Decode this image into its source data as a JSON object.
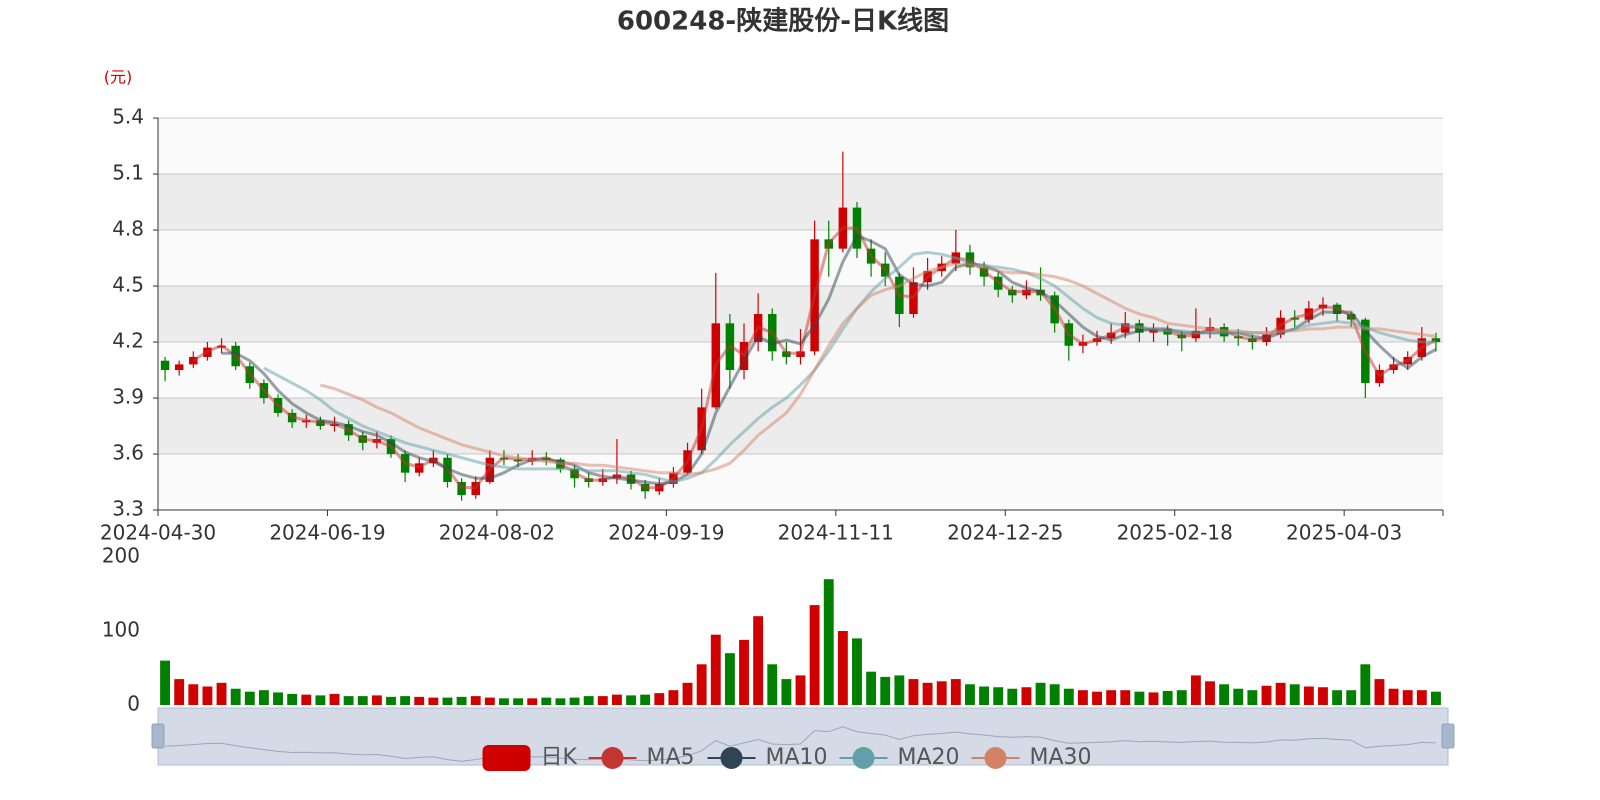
{
  "chart_data": [
    {
      "type": "candlestick",
      "title": "600248-陕建股份-日K线图",
      "y_label": "(元)",
      "name": "日K",
      "up_color": "#d10000",
      "down_color": "#008000",
      "grid": true,
      "legend": "bottom",
      "ylim": [
        3.3,
        5.4
      ],
      "yticks": [
        3.3,
        3.6,
        3.9,
        4.2,
        4.5,
        4.8,
        5.1,
        5.4
      ],
      "categories": [
        "2024-04-30",
        null,
        null,
        null,
        null,
        null,
        null,
        null,
        null,
        null,
        null,
        null,
        "2024-06-19",
        null,
        null,
        null,
        null,
        null,
        null,
        null,
        null,
        null,
        null,
        null,
        "2024-08-02",
        null,
        null,
        null,
        null,
        null,
        null,
        null,
        null,
        null,
        null,
        null,
        "2024-09-19",
        null,
        null,
        null,
        null,
        null,
        null,
        null,
        null,
        null,
        null,
        null,
        "2024-11-11",
        null,
        null,
        null,
        null,
        null,
        null,
        null,
        null,
        null,
        null,
        null,
        "2024-12-25",
        null,
        null,
        null,
        null,
        null,
        null,
        null,
        null,
        null,
        null,
        null,
        "2025-02-18",
        null,
        null,
        null,
        null,
        null,
        null,
        null,
        null,
        null,
        null,
        null,
        "2025-04-03",
        null,
        null,
        null,
        null,
        null,
        null
      ],
      "ohlc": [
        [
          4.1,
          4.05,
          3.99,
          4.12
        ],
        [
          4.05,
          4.08,
          4.02,
          4.1
        ],
        [
          4.08,
          4.12,
          4.06,
          4.15
        ],
        [
          4.12,
          4.17,
          4.1,
          4.2
        ],
        [
          4.17,
          4.18,
          4.14,
          4.22
        ],
        [
          4.18,
          4.07,
          4.05,
          4.2
        ],
        [
          4.07,
          3.98,
          3.95,
          4.09
        ],
        [
          3.98,
          3.9,
          3.87,
          4.0
        ],
        [
          3.9,
          3.82,
          3.8,
          3.92
        ],
        [
          3.82,
          3.77,
          3.74,
          3.84
        ],
        [
          3.77,
          3.78,
          3.74,
          3.81
        ],
        [
          3.78,
          3.75,
          3.73,
          3.8
        ],
        [
          3.75,
          3.76,
          3.72,
          3.8
        ],
        [
          3.76,
          3.7,
          3.67,
          3.78
        ],
        [
          3.7,
          3.66,
          3.62,
          3.72
        ],
        [
          3.66,
          3.68,
          3.63,
          3.72
        ],
        [
          3.68,
          3.6,
          3.58,
          3.7
        ],
        [
          3.6,
          3.5,
          3.45,
          3.62
        ],
        [
          3.5,
          3.55,
          3.48,
          3.58
        ],
        [
          3.55,
          3.58,
          3.53,
          3.62
        ],
        [
          3.58,
          3.45,
          3.42,
          3.6
        ],
        [
          3.45,
          3.38,
          3.35,
          3.47
        ],
        [
          3.38,
          3.45,
          3.36,
          3.48
        ],
        [
          3.45,
          3.58,
          3.44,
          3.62
        ],
        [
          3.58,
          3.57,
          3.54,
          3.62
        ],
        [
          3.57,
          3.56,
          3.53,
          3.6
        ],
        [
          3.56,
          3.58,
          3.54,
          3.62
        ],
        [
          3.58,
          3.57,
          3.54,
          3.61
        ],
        [
          3.57,
          3.52,
          3.5,
          3.58
        ],
        [
          3.52,
          3.47,
          3.42,
          3.54
        ],
        [
          3.47,
          3.45,
          3.42,
          3.5
        ],
        [
          3.45,
          3.47,
          3.43,
          3.52
        ],
        [
          3.47,
          3.49,
          3.44,
          3.68
        ],
        [
          3.49,
          3.44,
          3.41,
          3.51
        ],
        [
          3.44,
          3.4,
          3.36,
          3.46
        ],
        [
          3.4,
          3.44,
          3.38,
          3.47
        ],
        [
          3.44,
          3.5,
          3.42,
          3.53
        ],
        [
          3.5,
          3.62,
          3.49,
          3.66
        ],
        [
          3.62,
          3.85,
          3.6,
          3.95
        ],
        [
          3.85,
          4.3,
          3.84,
          4.57
        ],
        [
          4.3,
          4.05,
          3.95,
          4.35
        ],
        [
          4.05,
          4.2,
          4.0,
          4.3
        ],
        [
          4.2,
          4.35,
          4.15,
          4.46
        ],
        [
          4.35,
          4.15,
          4.1,
          4.38
        ],
        [
          4.15,
          4.12,
          4.08,
          4.2
        ],
        [
          4.12,
          4.15,
          4.08,
          4.27
        ],
        [
          4.15,
          4.75,
          4.13,
          4.85
        ],
        [
          4.75,
          4.7,
          4.55,
          4.85
        ],
        [
          4.7,
          4.92,
          4.68,
          5.22
        ],
        [
          4.92,
          4.7,
          4.65,
          4.95
        ],
        [
          4.7,
          4.62,
          4.55,
          4.75
        ],
        [
          4.62,
          4.55,
          4.5,
          4.68
        ],
        [
          4.55,
          4.35,
          4.28,
          4.57
        ],
        [
          4.35,
          4.52,
          4.33,
          4.6
        ],
        [
          4.52,
          4.58,
          4.48,
          4.65
        ],
        [
          4.58,
          4.62,
          4.55,
          4.66
        ],
        [
          4.62,
          4.68,
          4.58,
          4.8
        ],
        [
          4.68,
          4.6,
          4.56,
          4.72
        ],
        [
          4.6,
          4.55,
          4.5,
          4.63
        ],
        [
          4.55,
          4.48,
          4.44,
          4.58
        ],
        [
          4.48,
          4.45,
          4.41,
          4.5
        ],
        [
          4.45,
          4.48,
          4.43,
          4.53
        ],
        [
          4.48,
          4.45,
          4.42,
          4.6
        ],
        [
          4.45,
          4.3,
          4.25,
          4.47
        ],
        [
          4.3,
          4.18,
          4.1,
          4.32
        ],
        [
          4.18,
          4.2,
          4.14,
          4.24
        ],
        [
          4.2,
          4.22,
          4.18,
          4.26
        ],
        [
          4.22,
          4.25,
          4.19,
          4.3
        ],
        [
          4.25,
          4.3,
          4.22,
          4.36
        ],
        [
          4.3,
          4.25,
          4.2,
          4.32
        ],
        [
          4.25,
          4.27,
          4.2,
          4.3
        ],
        [
          4.27,
          4.24,
          4.18,
          4.29
        ],
        [
          4.24,
          4.22,
          4.15,
          4.26
        ],
        [
          4.22,
          4.26,
          4.2,
          4.38
        ],
        [
          4.26,
          4.28,
          4.22,
          4.33
        ],
        [
          4.28,
          4.23,
          4.2,
          4.3
        ],
        [
          4.23,
          4.22,
          4.18,
          4.27
        ],
        [
          4.22,
          4.2,
          4.16,
          4.24
        ],
        [
          4.2,
          4.24,
          4.18,
          4.28
        ],
        [
          4.24,
          4.33,
          4.22,
          4.37
        ],
        [
          4.33,
          4.32,
          4.28,
          4.37
        ],
        [
          4.32,
          4.38,
          4.3,
          4.42
        ],
        [
          4.38,
          4.4,
          4.34,
          4.44
        ],
        [
          4.4,
          4.35,
          4.31,
          4.41
        ],
        [
          4.35,
          4.32,
          4.28,
          4.36
        ],
        [
          4.32,
          3.98,
          3.9,
          4.33
        ],
        [
          3.98,
          4.05,
          3.96,
          4.08
        ],
        [
          4.05,
          4.08,
          4.03,
          4.12
        ],
        [
          4.08,
          4.12,
          4.05,
          4.15
        ],
        [
          4.12,
          4.22,
          4.1,
          4.28
        ],
        [
          4.22,
          4.2,
          4.15,
          4.25
        ]
      ],
      "series": [
        {
          "name": "MA5",
          "color": "#c23531",
          "values": [
            null,
            null,
            4.1,
            4.15,
            4.18,
            4.13,
            4.03,
            3.94,
            3.86,
            3.8,
            3.78,
            3.77,
            3.76,
            3.73,
            3.68,
            3.67,
            3.64,
            3.55,
            3.53,
            3.57,
            3.52,
            3.42,
            3.42,
            3.52,
            3.58,
            3.57,
            3.57,
            3.58,
            3.55,
            3.5,
            3.46,
            3.46,
            3.48,
            3.47,
            3.42,
            3.42,
            3.47,
            3.56,
            3.74,
            4.08,
            4.18,
            4.13,
            4.28,
            4.25,
            4.14,
            4.14,
            4.45,
            4.73,
            4.81,
            4.81,
            4.66,
            4.59,
            4.45,
            4.44,
            4.55,
            4.6,
            4.65,
            4.64,
            4.58,
            4.52,
            4.47,
            4.47,
            4.47,
            4.38,
            4.24,
            4.19,
            4.21,
            4.24,
            4.28,
            4.28,
            4.26,
            4.26,
            4.23,
            4.24,
            4.27,
            4.26,
            4.23,
            4.21,
            4.22,
            4.29,
            4.33,
            4.35,
            4.39,
            4.38,
            4.34,
            4.15,
            4.02,
            4.07,
            4.1,
            4.17,
            4.21
          ]
        },
        {
          "name": "MA10",
          "color": "#2f4554",
          "values": [
            null,
            null,
            null,
            null,
            4.14,
            4.14,
            4.1,
            4.03,
            3.94,
            3.87,
            3.82,
            3.78,
            3.77,
            3.75,
            3.72,
            3.7,
            3.66,
            3.61,
            3.58,
            3.56,
            3.52,
            3.49,
            3.47,
            3.47,
            3.5,
            3.54,
            3.57,
            3.57,
            3.56,
            3.54,
            3.5,
            3.48,
            3.47,
            3.46,
            3.45,
            3.44,
            3.45,
            3.49,
            3.6,
            3.82,
            3.96,
            4.1,
            4.23,
            4.19,
            4.21,
            4.19,
            4.29,
            4.43,
            4.63,
            4.77,
            4.74,
            4.7,
            4.56,
            4.51,
            4.5,
            4.52,
            4.6,
            4.62,
            4.61,
            4.58,
            4.52,
            4.49,
            4.47,
            4.42,
            4.35,
            4.28,
            4.23,
            4.21,
            4.24,
            4.26,
            4.27,
            4.27,
            4.25,
            4.25,
            4.25,
            4.25,
            4.25,
            4.23,
            4.22,
            4.25,
            4.27,
            4.32,
            4.36,
            4.36,
            4.36,
            4.26,
            4.18,
            4.11,
            4.06,
            4.12,
            4.16
          ]
        },
        {
          "name": "MA20",
          "color": "#61a0a8",
          "values": [
            null,
            null,
            null,
            null,
            null,
            null,
            null,
            4.06,
            4.02,
            3.98,
            3.94,
            3.89,
            3.83,
            3.79,
            3.75,
            3.72,
            3.69,
            3.66,
            3.64,
            3.62,
            3.6,
            3.58,
            3.56,
            3.54,
            3.53,
            3.52,
            3.52,
            3.52,
            3.52,
            3.52,
            3.51,
            3.51,
            3.51,
            3.5,
            3.49,
            3.47,
            3.45,
            3.47,
            3.5,
            3.57,
            3.65,
            3.72,
            3.79,
            3.85,
            3.9,
            3.97,
            4.05,
            4.15,
            4.27,
            4.38,
            4.47,
            4.54,
            4.6,
            4.67,
            4.68,
            4.67,
            4.65,
            4.62,
            4.61,
            4.6,
            4.59,
            4.57,
            4.54,
            4.5,
            4.44,
            4.38,
            4.33,
            4.3,
            4.29,
            4.28,
            4.27,
            4.26,
            4.26,
            4.25,
            4.25,
            4.25,
            4.25,
            4.25,
            4.25,
            4.25,
            4.27,
            4.29,
            4.3,
            4.31,
            4.3,
            4.28,
            4.25,
            4.23,
            4.21,
            4.2,
            4.2
          ]
        },
        {
          "name": "MA30",
          "color": "#d48265",
          "values": [
            null,
            null,
            null,
            null,
            null,
            null,
            null,
            null,
            null,
            null,
            null,
            3.97,
            3.95,
            3.92,
            3.89,
            3.85,
            3.82,
            3.78,
            3.74,
            3.71,
            3.68,
            3.65,
            3.63,
            3.61,
            3.59,
            3.58,
            3.57,
            3.56,
            3.55,
            3.55,
            3.54,
            3.54,
            3.53,
            3.52,
            3.51,
            3.5,
            3.5,
            3.49,
            3.5,
            3.52,
            3.55,
            3.62,
            3.7,
            3.76,
            3.82,
            3.92,
            4.05,
            4.18,
            4.3,
            4.38,
            4.45,
            4.48,
            4.5,
            4.54,
            4.58,
            4.6,
            4.62,
            4.61,
            4.6,
            4.58,
            4.57,
            4.57,
            4.56,
            4.55,
            4.53,
            4.5,
            4.46,
            4.42,
            4.38,
            4.35,
            4.33,
            4.3,
            4.29,
            4.28,
            4.27,
            4.26,
            4.26,
            4.25,
            4.25,
            4.26,
            4.26,
            4.27,
            4.27,
            4.28,
            4.28,
            4.27,
            4.27,
            4.26,
            4.25,
            4.24,
            4.23
          ]
        }
      ]
    },
    {
      "type": "bar",
      "ylim": [
        0,
        200
      ],
      "yticks": [
        0,
        100,
        200
      ],
      "values": [
        60,
        35,
        28,
        25,
        30,
        22,
        18,
        20,
        17,
        15,
        14,
        13,
        15,
        12,
        12,
        13,
        11,
        12,
        11,
        10,
        10,
        11,
        12,
        10,
        9,
        9,
        9,
        10,
        9,
        10,
        12,
        12,
        14,
        13,
        14,
        16,
        20,
        30,
        55,
        95,
        70,
        88,
        120,
        55,
        35,
        40,
        135,
        170,
        100,
        90,
        45,
        38,
        40,
        35,
        30,
        32,
        35,
        28,
        25,
        24,
        22,
        24,
        30,
        28,
        22,
        20,
        18,
        20,
        20,
        18,
        17,
        19,
        20,
        40,
        32,
        28,
        22,
        20,
        26,
        30,
        28,
        25,
        24,
        20,
        20,
        55,
        35,
        22,
        20,
        20,
        18
      ]
    }
  ]
}
